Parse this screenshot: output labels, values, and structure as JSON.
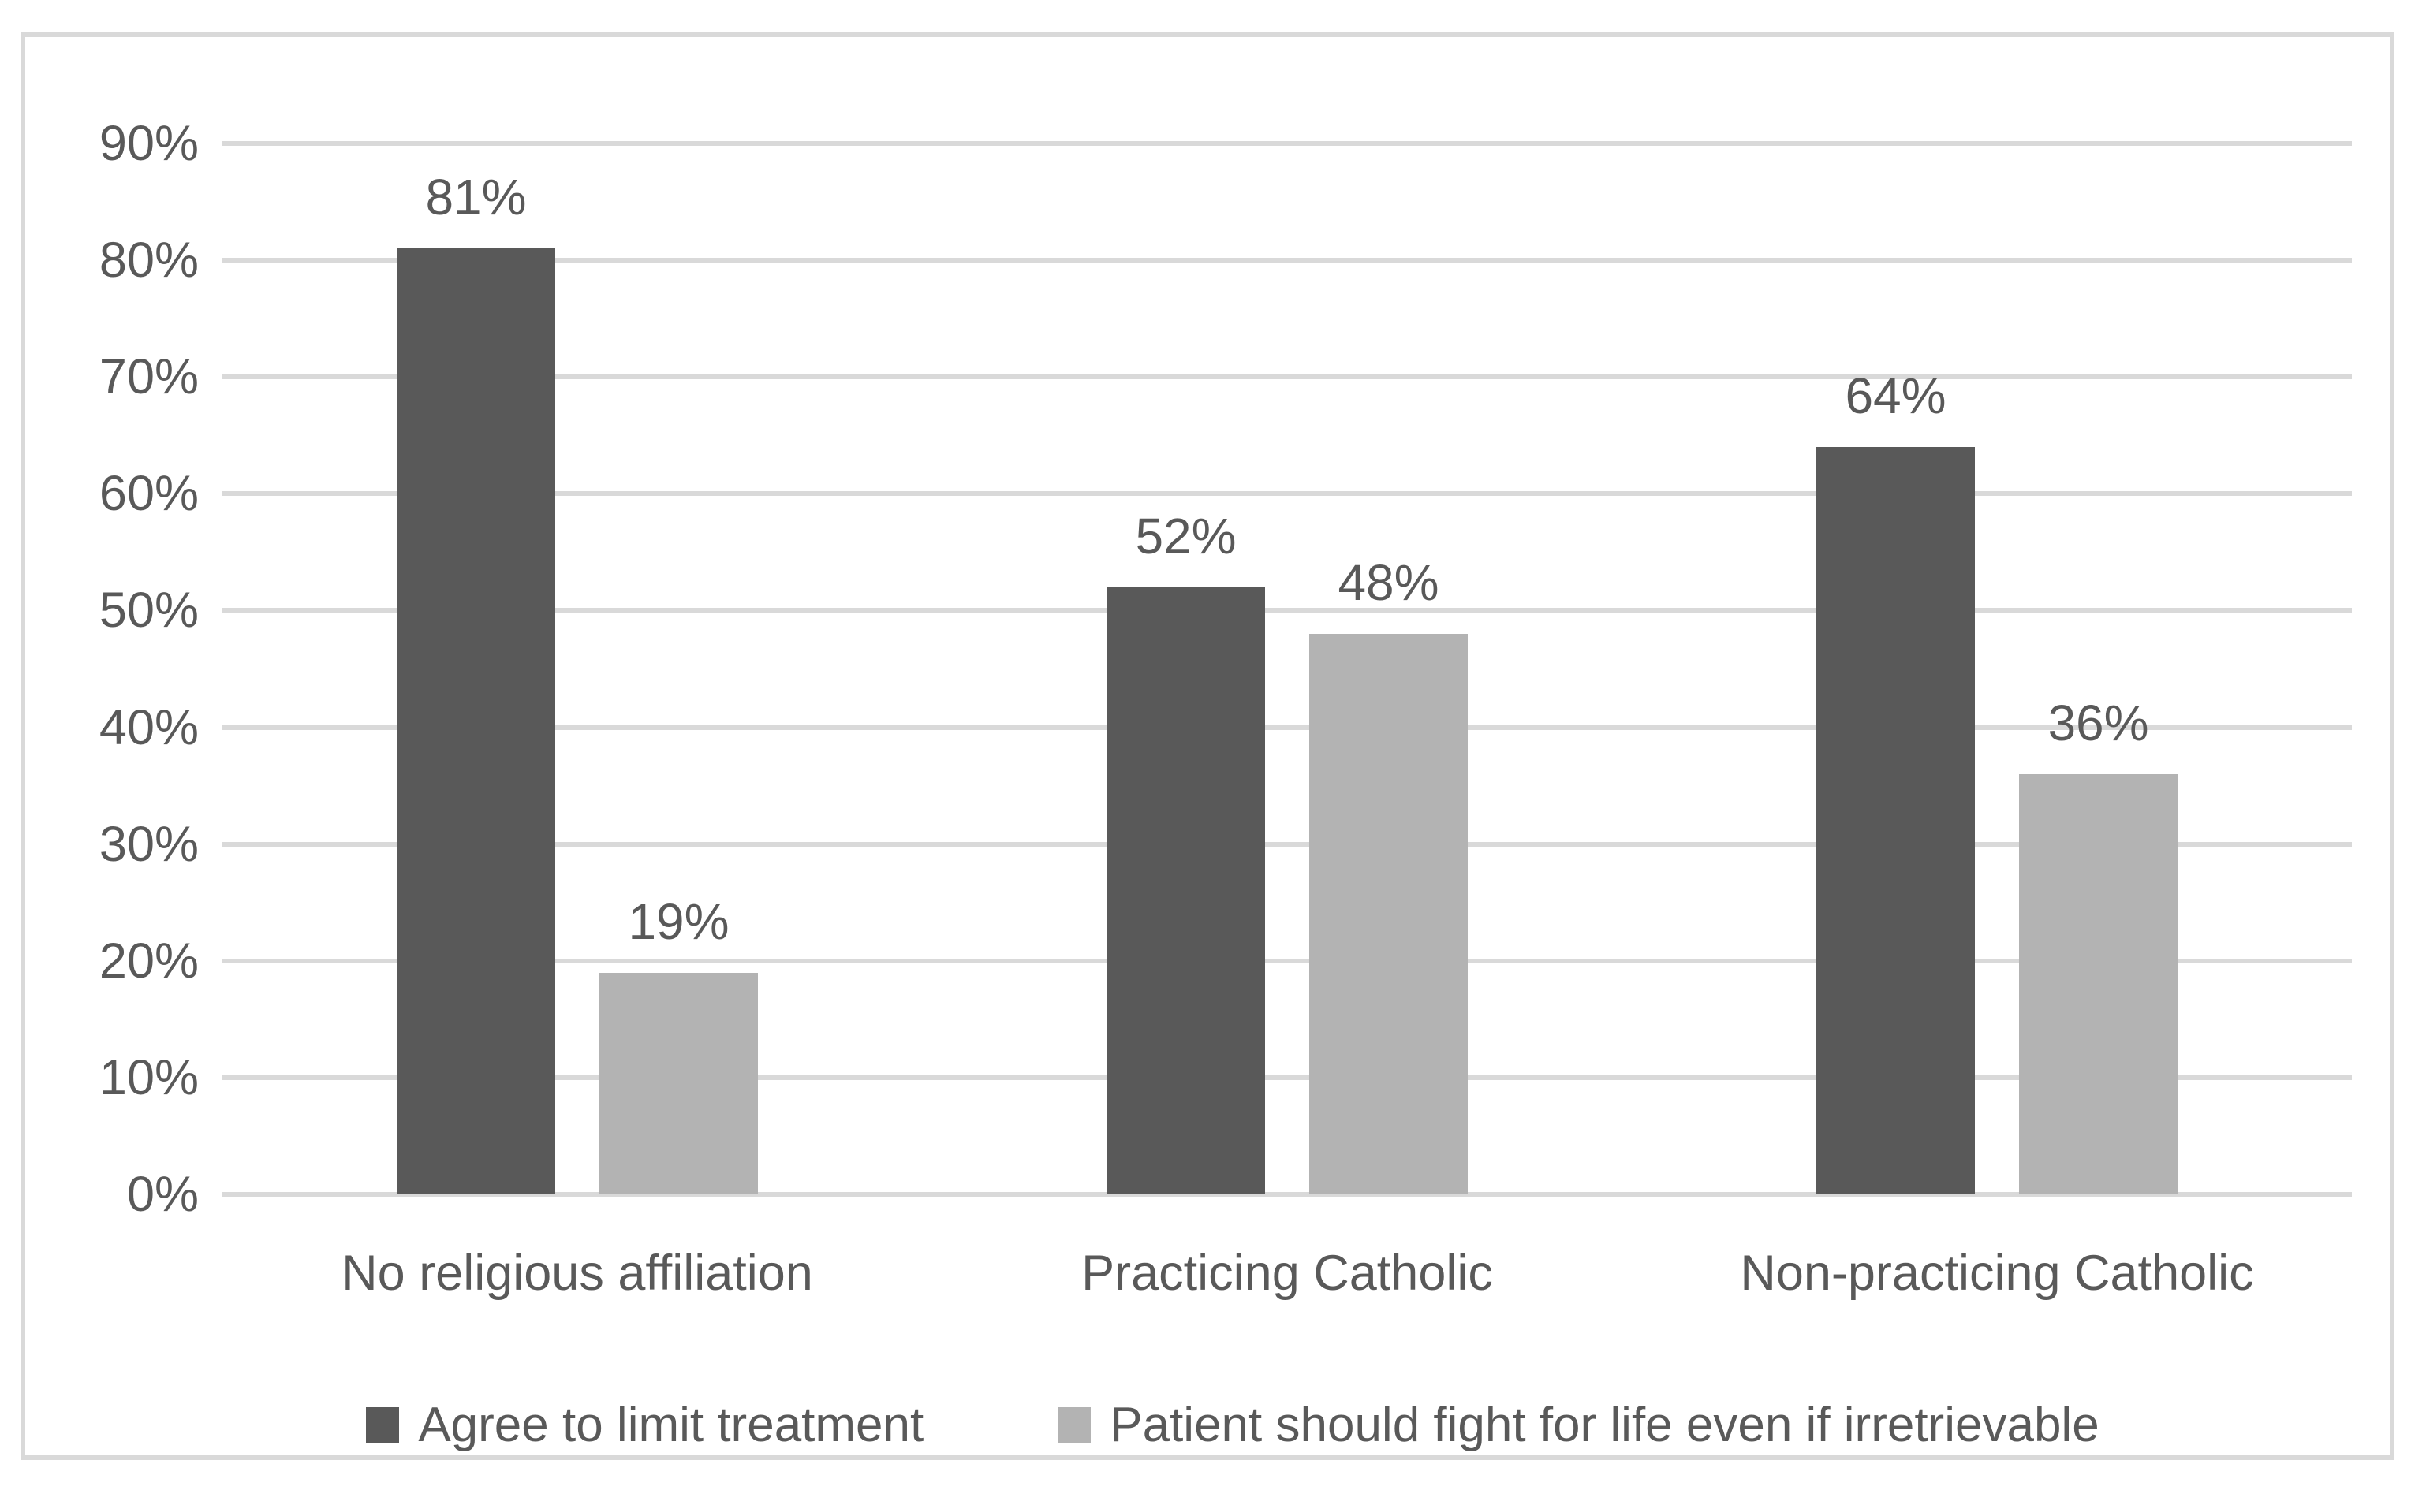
{
  "figure": {
    "background": "#ffffff",
    "frame_border_color": "#d9d9d9"
  },
  "chart_data": {
    "type": "bar",
    "title": "",
    "xlabel": "",
    "ylabel": "",
    "categories": [
      "No religious affiliation",
      "Practicing Catholic",
      "Non-practicing Catholic"
    ],
    "series": [
      {
        "name": "Agree to limit treatment",
        "color": "#595959",
        "values": [
          81,
          52,
          64
        ],
        "data_labels": [
          "81%",
          "52%",
          "64%"
        ]
      },
      {
        "name": "Patient should fight for life even if irretrievable",
        "color": "#b3b3b3",
        "values": [
          19,
          48,
          36
        ],
        "data_labels": [
          "19%",
          "48%",
          "36%"
        ]
      }
    ],
    "y_axis": {
      "min": 0,
      "max": 90,
      "step": 10,
      "tick_labels": [
        "0%",
        "10%",
        "20%",
        "30%",
        "40%",
        "50%",
        "60%",
        "70%",
        "80%",
        "90%"
      ]
    },
    "grid": true,
    "gridline_color": "#d9d9d9",
    "text_color": "#595959",
    "legend_position": "bottom"
  }
}
